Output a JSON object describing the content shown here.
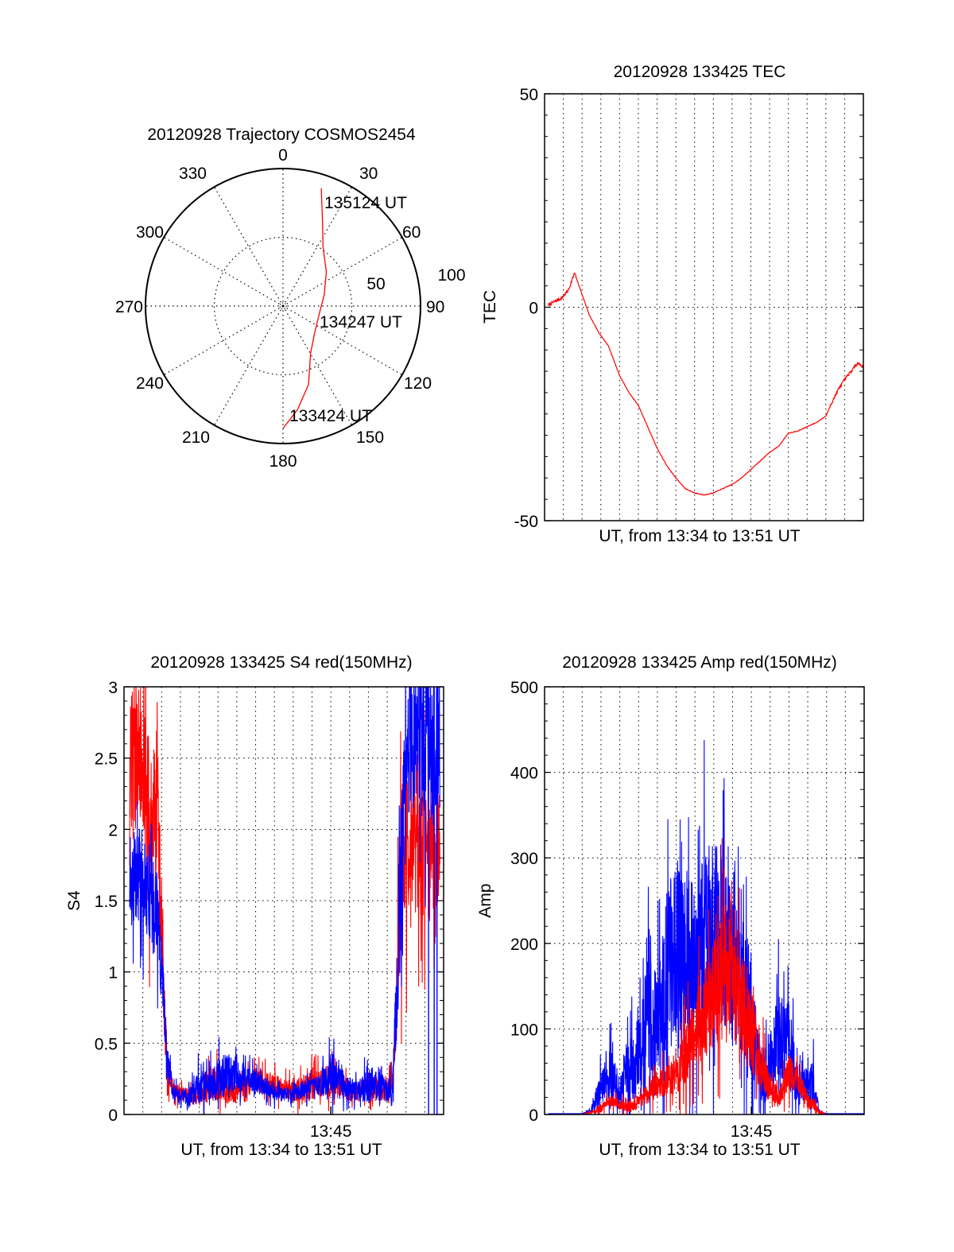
{
  "chart_data": [
    {
      "id": "trajectory",
      "type": "polar",
      "title": "20120928 Trajectory COSMOS2454",
      "angle_labels": [
        "0",
        "30",
        "60",
        "90",
        "120",
        "150",
        "180",
        "210",
        "240",
        "270",
        "300",
        "330"
      ],
      "angle_values": [
        0,
        30,
        60,
        90,
        120,
        150,
        180,
        210,
        240,
        270,
        300,
        330
      ],
      "radial_labels": [
        "50",
        "100"
      ],
      "radial_values": [
        50,
        100
      ],
      "rlim": [
        0,
        100
      ],
      "grid": true,
      "series": [
        {
          "name": "trajectory",
          "color": "#ff0000",
          "points": [
            {
              "az": 180,
              "r": 89
            },
            {
              "az": 172,
              "r": 76
            },
            {
              "az": 162,
              "r": 60
            },
            {
              "az": 150,
              "r": 40
            },
            {
              "az": 130,
              "r": 30
            },
            {
              "az": 100,
              "r": 27
            },
            {
              "az": 75,
              "r": 31
            },
            {
              "az": 52,
              "r": 40
            },
            {
              "az": 34,
              "r": 52
            },
            {
              "az": 25,
              "r": 68
            },
            {
              "az": 18,
              "r": 90
            }
          ]
        }
      ],
      "annotations": [
        {
          "text": "133424 UT",
          "az": 172,
          "r": 92
        },
        {
          "text": "134247 UT",
          "az": 98,
          "r": 30
        },
        {
          "text": "135124 UT",
          "az": 22,
          "r": 92
        }
      ]
    },
    {
      "id": "tec",
      "type": "line",
      "title": "20120928 133425 TEC",
      "xlabel": "UT, from 13:34 to 13:51 UT",
      "ylabel": "TEC",
      "x_unit": "minutes after 13:34",
      "xlim": [
        0,
        17
      ],
      "ylim": [
        -50,
        50
      ],
      "yticks": [
        "-50",
        "0",
        "50"
      ],
      "ytick_values": [
        -50,
        0,
        50
      ],
      "grid": true,
      "series": [
        {
          "name": "TEC",
          "color": "#ff0000",
          "x": [
            0.2,
            0.6,
            0.93,
            1.27,
            1.6,
            2.0,
            2.4,
            2.9,
            3.4,
            4.0,
            4.5,
            5.0,
            5.5,
            6.0,
            6.5,
            7.0,
            7.5,
            8.0,
            8.5,
            9.0,
            9.5,
            10.0,
            10.5,
            11.0,
            11.5,
            12.0,
            12.5,
            13.0,
            13.5,
            14.0,
            14.5,
            15.0,
            15.35,
            15.7,
            16.0,
            16.35,
            16.7,
            17.0
          ],
          "y": [
            0.5,
            1.5,
            2.2,
            4.0,
            8.0,
            3.0,
            -2.0,
            -6.0,
            -9.0,
            -16.0,
            -20.0,
            -23.0,
            -28.0,
            -33.0,
            -37.0,
            -40.0,
            -42.5,
            -43.5,
            -44.0,
            -43.5,
            -42.5,
            -41.5,
            -40.0,
            -38.0,
            -36.0,
            -34.0,
            -32.5,
            -29.5,
            -29.0,
            -28.0,
            -27.0,
            -25.5,
            -22.0,
            -19.0,
            -17.0,
            -15.0,
            -13.0,
            -14.0
          ]
        }
      ]
    },
    {
      "id": "s4",
      "type": "line",
      "title": "20120928 133425 S4 red(150MHz)",
      "xlabel": "UT, from 13:34 to 13:51 UT",
      "ylabel": "S4",
      "x_unit": "minutes after 13:34",
      "xlim": [
        0,
        17
      ],
      "ylim": [
        0,
        3
      ],
      "xticks": [
        "13:45"
      ],
      "xtick_values": [
        11
      ],
      "yticks": [
        "0",
        "0.5",
        "1",
        "1.5",
        "2",
        "2.5",
        "3"
      ],
      "ytick_values": [
        0,
        0.5,
        1,
        1.5,
        2,
        2.5,
        3
      ],
      "grid": true,
      "series": [
        {
          "name": "red",
          "color": "#ff0000",
          "x": [
            0.3,
            0.8,
            1.3,
            1.8,
            2.1,
            2.3,
            2.6,
            3.0,
            3.5,
            4.0,
            4.5,
            5.0,
            5.5,
            6.0,
            6.5,
            7.0,
            7.5,
            8.0,
            8.5,
            9.0,
            9.5,
            10.0,
            10.5,
            11.0,
            11.5,
            12.0,
            12.5,
            13.0,
            13.5,
            14.0,
            14.3,
            14.5,
            14.8,
            15.2,
            15.6,
            16.0,
            16.4,
            16.8
          ],
          "y": [
            2.4,
            2.6,
            2.0,
            2.1,
            0.8,
            0.35,
            0.17,
            0.15,
            0.12,
            0.12,
            0.2,
            0.22,
            0.15,
            0.17,
            0.2,
            0.25,
            0.22,
            0.2,
            0.18,
            0.17,
            0.18,
            0.2,
            0.22,
            0.24,
            0.22,
            0.16,
            0.16,
            0.2,
            0.18,
            0.16,
            0.25,
            0.9,
            1.8,
            1.9,
            1.9,
            1.9,
            1.8,
            1.9
          ],
          "spread": [
            0.6,
            0.5,
            0.6,
            0.5,
            0.25,
            0.12,
            0.06,
            0.06,
            0.05,
            0.06,
            0.12,
            0.12,
            0.08,
            0.08,
            0.08,
            0.08,
            0.08,
            0.08,
            0.07,
            0.08,
            0.08,
            0.1,
            0.1,
            0.12,
            0.1,
            0.07,
            0.07,
            0.08,
            0.08,
            0.07,
            0.1,
            0.4,
            0.6,
            0.5,
            0.5,
            0.5,
            0.5,
            0.4
          ]
        },
        {
          "name": "blue",
          "color": "#0000ff",
          "x": [
            0.3,
            0.8,
            1.3,
            1.8,
            2.1,
            2.3,
            2.6,
            3.0,
            3.5,
            4.0,
            4.5,
            5.0,
            5.5,
            6.0,
            6.5,
            7.0,
            7.5,
            8.0,
            8.5,
            9.0,
            9.5,
            10.0,
            10.5,
            11.0,
            11.5,
            12.0,
            12.5,
            13.0,
            13.5,
            14.0,
            14.3,
            14.5,
            14.8,
            15.2,
            15.6,
            16.0,
            16.4,
            16.8
          ],
          "y": [
            1.6,
            1.7,
            1.6,
            1.4,
            0.8,
            0.4,
            0.15,
            0.13,
            0.12,
            0.2,
            0.2,
            0.25,
            0.28,
            0.3,
            0.25,
            0.24,
            0.2,
            0.15,
            0.14,
            0.14,
            0.17,
            0.2,
            0.2,
            0.3,
            0.25,
            0.18,
            0.18,
            0.2,
            0.22,
            0.15,
            0.25,
            0.9,
            1.9,
            2.6,
            2.7,
            2.6,
            2.6,
            2.6
          ],
          "spread": [
            0.35,
            0.35,
            0.35,
            0.3,
            0.2,
            0.12,
            0.05,
            0.05,
            0.06,
            0.12,
            0.1,
            0.15,
            0.15,
            0.12,
            0.1,
            0.08,
            0.06,
            0.05,
            0.05,
            0.05,
            0.06,
            0.06,
            0.08,
            0.15,
            0.1,
            0.08,
            0.08,
            0.12,
            0.12,
            0.07,
            0.1,
            0.4,
            0.6,
            0.5,
            0.5,
            0.6,
            0.6,
            0.5
          ]
        }
      ]
    },
    {
      "id": "amp",
      "type": "line",
      "title": "20120928 133425 Amp red(150MHz)",
      "xlabel": "UT, from 13:34 to 13:51 UT",
      "ylabel": "Amp",
      "x_unit": "minutes after 13:34",
      "xlim": [
        0,
        17
      ],
      "ylim": [
        0,
        500
      ],
      "xticks": [
        "13:45"
      ],
      "xtick_values": [
        11
      ],
      "yticks": [
        "0",
        "100",
        "200",
        "300",
        "400",
        "500"
      ],
      "ytick_values": [
        0,
        100,
        200,
        300,
        400,
        500
      ],
      "grid": true,
      "series": [
        {
          "name": "red",
          "color": "#ff0000",
          "x": [
            0.2,
            1.0,
            2.0,
            2.5,
            3.0,
            3.5,
            4.0,
            4.5,
            5.0,
            5.5,
            6.0,
            6.5,
            7.0,
            7.5,
            8.0,
            8.5,
            9.0,
            9.5,
            10.0,
            10.5,
            11.0,
            11.5,
            12.0,
            12.5,
            13.0,
            13.5,
            14.0,
            14.3,
            14.6,
            15.0,
            16.0,
            17.0
          ],
          "y": [
            0,
            0,
            0,
            2,
            8,
            16,
            12,
            8,
            15,
            25,
            35,
            40,
            45,
            70,
            100,
            120,
            140,
            170,
            160,
            130,
            100,
            60,
            30,
            20,
            50,
            40,
            15,
            12,
            3,
            0,
            0,
            0
          ],
          "spread": [
            0,
            0,
            0,
            2,
            5,
            6,
            6,
            5,
            8,
            12,
            15,
            18,
            20,
            35,
            45,
            55,
            60,
            80,
            70,
            60,
            50,
            35,
            15,
            10,
            20,
            15,
            8,
            6,
            2,
            0,
            0,
            0
          ]
        },
        {
          "name": "blue",
          "color": "#0000ff",
          "x": [
            0.2,
            1.0,
            2.0,
            2.5,
            3.0,
            3.5,
            4.0,
            4.5,
            5.0,
            5.5,
            6.0,
            6.5,
            7.0,
            7.5,
            8.0,
            8.5,
            9.0,
            9.5,
            10.0,
            10.5,
            11.0,
            11.5,
            12.0,
            12.5,
            13.0,
            13.5,
            14.0,
            14.3,
            14.6,
            15.0,
            16.0,
            17.0
          ],
          "y": [
            1,
            1,
            1,
            4,
            35,
            45,
            30,
            60,
            60,
            110,
            90,
            160,
            190,
            180,
            170,
            200,
            210,
            200,
            170,
            150,
            120,
            40,
            60,
            100,
            80,
            30,
            35,
            40,
            3,
            1,
            1,
            1
          ],
          "spread": [
            0,
            0,
            0,
            3,
            20,
            30,
            25,
            45,
            40,
            80,
            70,
            100,
            110,
            110,
            100,
            110,
            110,
            100,
            90,
            80,
            70,
            30,
            40,
            55,
            50,
            20,
            20,
            25,
            2,
            0,
            0,
            0
          ]
        }
      ]
    }
  ]
}
